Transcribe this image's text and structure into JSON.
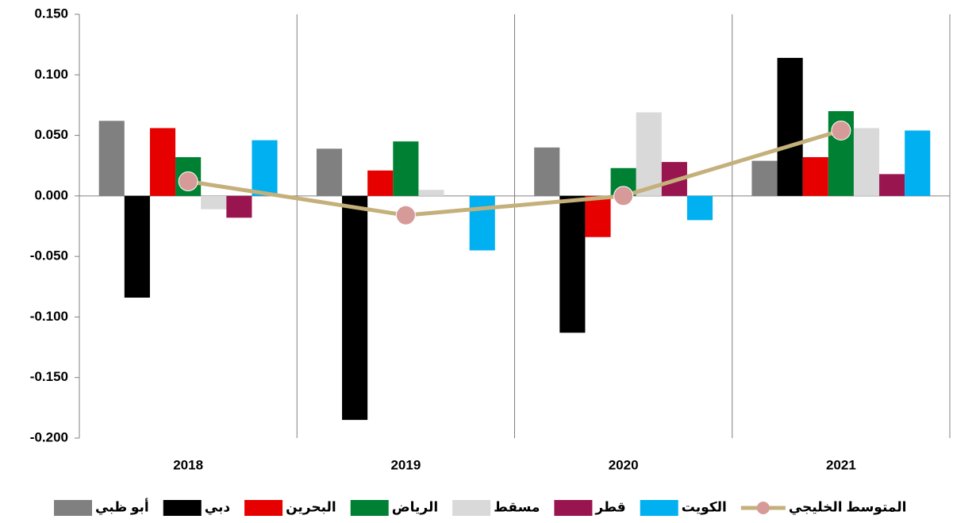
{
  "chart_data": {
    "type": "bar",
    "categories": [
      "2018",
      "2019",
      "2020",
      "2021"
    ],
    "series": [
      {
        "name": "أبو ظبي",
        "color": "#808080",
        "values": [
          0.062,
          0.039,
          0.04,
          0.029
        ]
      },
      {
        "name": "دبي",
        "color": "#000000",
        "values": [
          -0.084,
          -0.185,
          -0.113,
          0.114
        ]
      },
      {
        "name": "البحرين",
        "color": "#e60000",
        "values": [
          0.056,
          0.021,
          -0.034,
          0.032
        ]
      },
      {
        "name": "الرياض",
        "color": "#008033",
        "values": [
          0.032,
          0.045,
          0.023,
          0.07
        ]
      },
      {
        "name": "مسقط",
        "color": "#d9d9d9",
        "values": [
          -0.011,
          0.005,
          0.069,
          0.056
        ]
      },
      {
        "name": "قطر",
        "color": "#99154f",
        "values": [
          -0.018,
          0.0,
          0.028,
          0.018
        ]
      },
      {
        "name": "الكويت",
        "color": "#00b0f0",
        "values": [
          0.046,
          -0.045,
          -0.02,
          0.054
        ]
      },
      {
        "name": "المتوسط الخليجي",
        "type": "line",
        "color": "#c4b07a",
        "marker_color": "#d69a98",
        "values": [
          0.012,
          -0.016,
          0.0,
          0.054
        ]
      }
    ],
    "ylim": [
      -0.2,
      0.15
    ],
    "yticks": [
      {
        "value": -0.2,
        "label": "-0.200"
      },
      {
        "value": -0.15,
        "label": "-0.150"
      },
      {
        "value": -0.1,
        "label": "-0.100"
      },
      {
        "value": -0.05,
        "label": "-0.050"
      },
      {
        "value": 0,
        "label": "0.000"
      },
      {
        "value": 0.05,
        "label": "0.050"
      },
      {
        "value": 0.1,
        "label": "0.100"
      },
      {
        "value": 0.15,
        "label": "0.150"
      }
    ],
    "category_separators": true
  }
}
